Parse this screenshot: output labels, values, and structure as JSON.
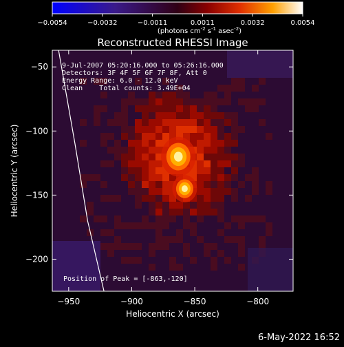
{
  "chart_data": {
    "type": "heatmap",
    "title": "Reconstructed RHESSI Image",
    "colorbar": {
      "ticks": [
        "-0.0054",
        "-0.0032",
        "-0.0011",
        "0.0011",
        "0.0032",
        "0.0054"
      ],
      "range": [
        -0.0054,
        0.0054
      ],
      "unit_label_main": "(photons cm",
      "unit_sup1": "-2",
      "unit_mid": " s",
      "unit_sup2": "-1",
      "unit_mid2": " asec",
      "unit_sup3": "-2",
      "unit_end": ")"
    },
    "xlabel": "Heliocentric X (arcsec)",
    "ylabel": "Heliocentric Y (arcsec)",
    "xlim": [
      -963,
      -772
    ],
    "ylim": [
      -225,
      -37
    ],
    "xticks": [
      {
        "value": -950,
        "label": "−950"
      },
      {
        "value": -900,
        "label": "−900"
      },
      {
        "value": -850,
        "label": "−850"
      },
      {
        "value": -800,
        "label": "−800"
      }
    ],
    "yticks": [
      {
        "value": -50,
        "label": "−50"
      },
      {
        "value": -100,
        "label": "−100"
      },
      {
        "value": -150,
        "label": "−150"
      },
      {
        "value": -200,
        "label": "−200"
      }
    ],
    "annotations": {
      "time_range": "9-Jul-2007 05:20:16.000 to 05:26:16.000",
      "detectors": "Detectors: 3F 4F 5F 6F 7F 8F, Att 0",
      "energy": "Energy Range: 6.0 - 12.0 keV",
      "method": "Clean    Total counts: 3.49E+04",
      "peak": "Position of Peak = [-863,-120]"
    },
    "peak": {
      "x": -863,
      "y": -120
    },
    "secondary_source": {
      "x": -858,
      "y": -145
    },
    "limb": [
      {
        "x": -958,
        "y": -37
      },
      {
        "x": -945,
        "y": -110
      },
      {
        "x": -935,
        "y": -170
      },
      {
        "x": -922,
        "y": -225
      }
    ]
  },
  "footer": {
    "timestamp": "6-May-2022 16:52"
  }
}
